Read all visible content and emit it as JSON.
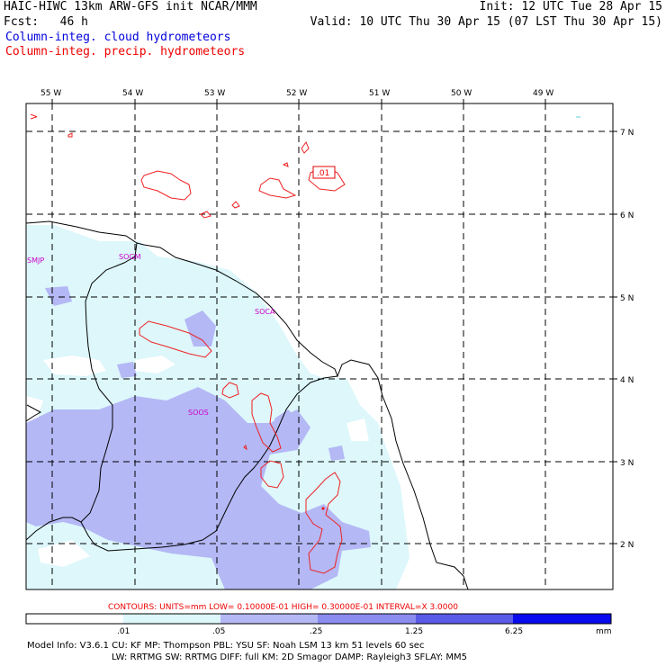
{
  "header": {
    "title_left": "HAIC-HIWC 13km ARW-GFS init   NCAR/MMM",
    "init": "Init: 12 UTC Tue 28 Apr 15",
    "fcst_label": "Fcst:",
    "fcst_value": "46 h",
    "valid": "Valid: 10 UTC Thu 30 Apr 15 (07 LST Thu 30 Apr 15)",
    "legend_cloud": "Column-integ. cloud hydrometeors",
    "legend_precip": "Column-integ. precip. hydrometeors"
  },
  "map": {
    "lon_labels": [
      "55 W",
      "54 W",
      "53 W",
      "52 W",
      "51 W",
      "50 W",
      "49 W"
    ],
    "lat_labels": [
      "7 N",
      "6 N",
      "5 N",
      "4 N",
      "3 N",
      "2 N"
    ],
    "stations": [
      "SMJP",
      "SOGM",
      "SOCA",
      "SOOS"
    ],
    "contour_label": ".01",
    "corner_mark": ">"
  },
  "contours_line": "CONTOURS:  UNITS=mm  LOW= 0.10000E-01  HIGH= 0.30000E-01  INTERVAL=X  3.0000",
  "colorbar": {
    "ticks": [
      ".01",
      ".05",
      ".25",
      "1.25",
      "6.25"
    ],
    "units": "mm",
    "colors": [
      "#ffffff",
      "#ddf7fb",
      "#b4b8f5",
      "#8a8cef",
      "#5a5ae8",
      "#0a0aee"
    ]
  },
  "model_info": {
    "line1": "Model Info: V3.6.1    CU: KF      MP: Thompson    PBL: YSU      SF: Noah LSM     13 km   51 levels  60 sec",
    "line2": "LW: RRTMG    SW: RRTMG  DIFF: full    KM: 2D Smagor DAMP: Rayleigh3  SFLAY: MM5"
  }
}
